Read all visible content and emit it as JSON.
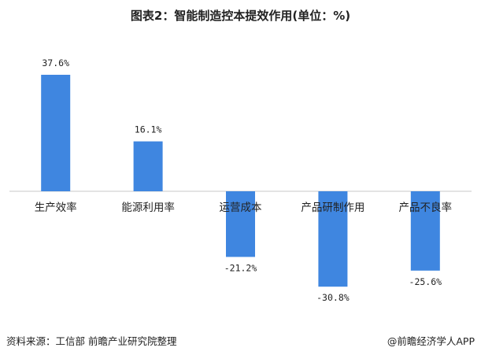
{
  "chart_data": {
    "type": "bar",
    "title": "图表2：智能制造控本提效作用(单位：%)",
    "categories": [
      "生产效率",
      "能源利用率",
      "运营成本",
      "产品研制作用",
      "产品不良率"
    ],
    "values": [
      37.6,
      16.1,
      -21.2,
      -30.8,
      -25.6
    ],
    "value_labels": [
      "37.6%",
      "16.1%",
      "-21.2%",
      "-30.8%",
      "-25.6%"
    ],
    "ylim": [
      -36,
      43
    ],
    "xlabel": "",
    "ylabel": "",
    "grid": false,
    "bar_color": "#3f86e0",
    "axis_color": "#c8c8c8"
  },
  "footer": {
    "source": "资料来源：工信部 前瞻产业研究院整理",
    "brand": "@前瞻经济学人APP"
  }
}
